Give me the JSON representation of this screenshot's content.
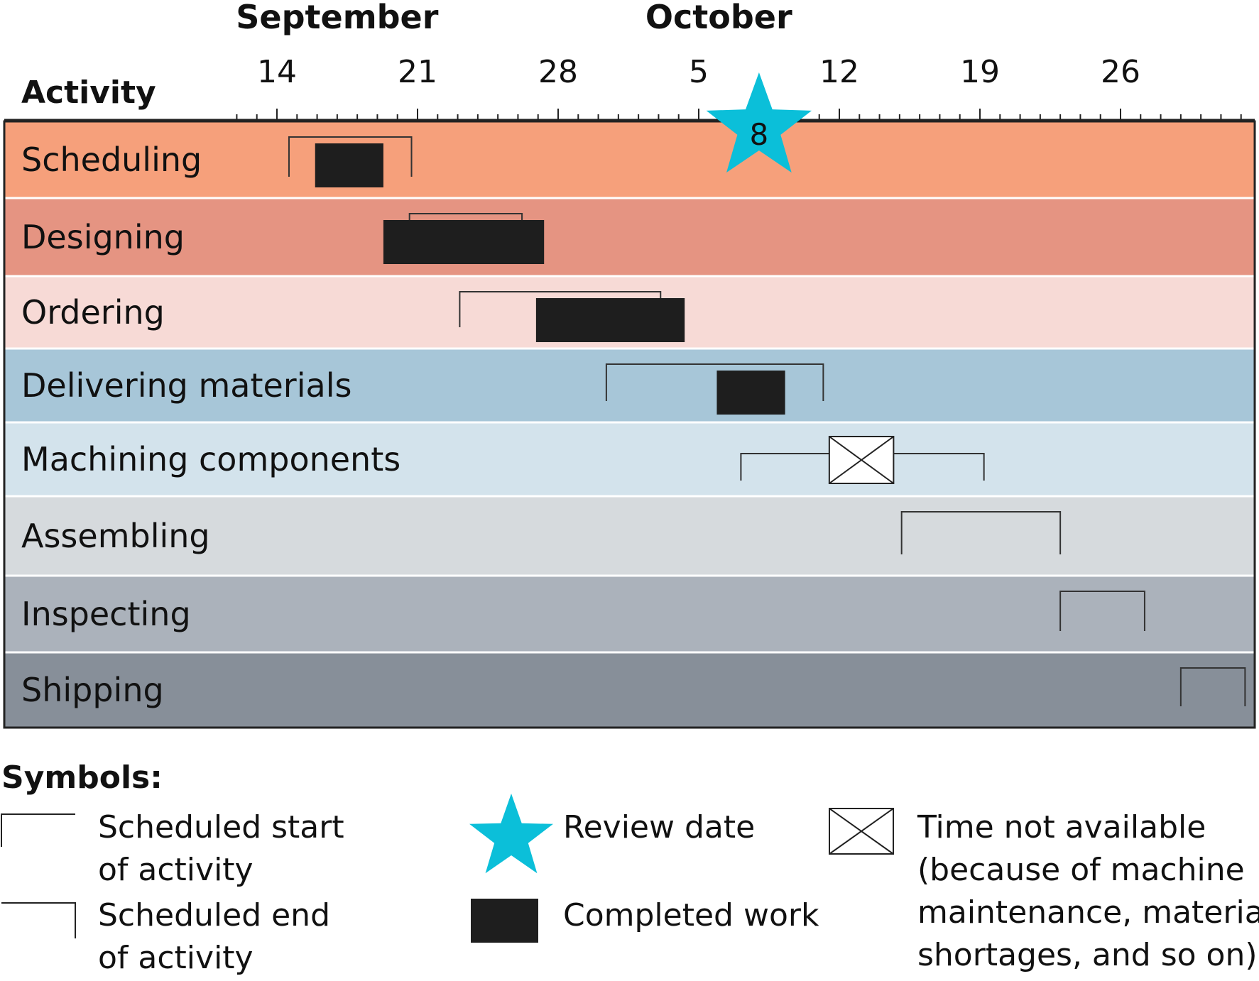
{
  "chart_data": {
    "type": "gantt",
    "months": [
      {
        "name": "September",
        "label_date": "2000-09-17"
      },
      {
        "name": "October",
        "label_date": "2000-10-06"
      }
    ],
    "x_ticks": [
      {
        "date": "2000-09-14",
        "label": "14"
      },
      {
        "date": "2000-09-21",
        "label": "21"
      },
      {
        "date": "2000-09-28",
        "label": "28"
      },
      {
        "date": "2000-10-05",
        "label": "5"
      },
      {
        "date": "2000-10-12",
        "label": "12"
      },
      {
        "date": "2000-10-19",
        "label": "19"
      },
      {
        "date": "2000-10-26",
        "label": "26"
      }
    ],
    "x_range": [
      "2000-09-12",
      "2000-11-01"
    ],
    "activity_header": "Activity",
    "review": {
      "date": "2000-10-08",
      "label": "8",
      "color": "#0bbfd9"
    },
    "activities": [
      {
        "name": "Scheduling",
        "color": "#f6a07b",
        "scheduled_start": "2000-09-14.6",
        "scheduled_end": "2000-09-20.7",
        "completed": [
          [
            "2000-09-15.9",
            "2000-09-19.3"
          ]
        ],
        "unavailable": []
      },
      {
        "name": "Designing",
        "color": "#e59482",
        "scheduled_start": "2000-09-20.6",
        "scheduled_end": "2000-09-26.2",
        "completed": [
          [
            "2000-09-19.3",
            "2000-09-27.3"
          ]
        ],
        "unavailable": []
      },
      {
        "name": "Ordering",
        "color": "#f7dad6",
        "scheduled_start": "2000-09-23.1",
        "scheduled_end": "2000-10-03.1",
        "completed": [
          [
            "2000-09-26.9",
            "2000-10-04.3"
          ]
        ],
        "unavailable": []
      },
      {
        "name": "Delivering materials",
        "color": "#a7c6d8",
        "scheduled_start": "2000-09-30.4",
        "scheduled_end": "2000-10-11.2",
        "completed": [
          [
            "2000-10-05.9",
            "2000-10-09.3"
          ]
        ],
        "unavailable": []
      },
      {
        "name": "Machining components",
        "color": "#d3e3ec",
        "scheduled_start": "2000-10-07.1",
        "scheduled_end": "2000-10-19.2",
        "completed": [],
        "unavailable": [
          [
            "2000-10-11.5",
            "2000-10-14.7"
          ]
        ]
      },
      {
        "name": "Assembling",
        "color": "#d6dadd",
        "scheduled_start": "2000-10-15.1",
        "scheduled_end": "2000-10-23.0",
        "completed": [],
        "unavailable": []
      },
      {
        "name": "Inspecting",
        "color": "#abb2bb",
        "scheduled_start": "2000-10-23.0",
        "scheduled_end": "2000-10-27.2",
        "completed": [],
        "unavailable": []
      },
      {
        "name": "Shipping",
        "color": "#878f99",
        "scheduled_start": "2000-10-29.0",
        "scheduled_end": "2000-11-01.2",
        "completed": [],
        "unavailable": []
      }
    ]
  },
  "legend": {
    "title": "Symbols:",
    "scheduled_start": [
      "Scheduled start",
      "of activity"
    ],
    "scheduled_end": [
      "Scheduled end",
      "of activity"
    ],
    "review_date": "Review date",
    "completed_work": "Completed work",
    "time_not_available": [
      "Time not available",
      "(because of machine",
      "maintenance, material",
      "shortages, and so on)"
    ]
  }
}
